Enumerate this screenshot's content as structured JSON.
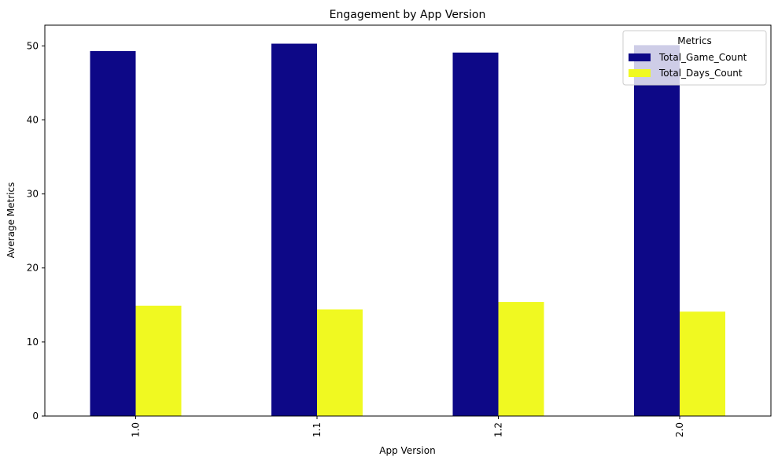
{
  "chart_data": {
    "type": "bar",
    "title": "Engagement by App Version",
    "xlabel": "App Version",
    "ylabel": "Average Metrics",
    "categories": [
      "1.0",
      "1.1",
      "1.2",
      "2.0"
    ],
    "series": [
      {
        "name": "Total_Game_Count",
        "color": "#0d0887",
        "values": [
          49.3,
          50.3,
          49.1,
          50.1
        ]
      },
      {
        "name": "Total_Days_Count",
        "color": "#f0f921",
        "values": [
          14.9,
          14.4,
          15.4,
          14.1
        ]
      }
    ],
    "ylim": [
      0,
      52.8
    ],
    "yticks": [
      0,
      10,
      20,
      30,
      40,
      50
    ],
    "grid": false,
    "legend": {
      "title": "Metrics",
      "placement": "top-right"
    }
  }
}
